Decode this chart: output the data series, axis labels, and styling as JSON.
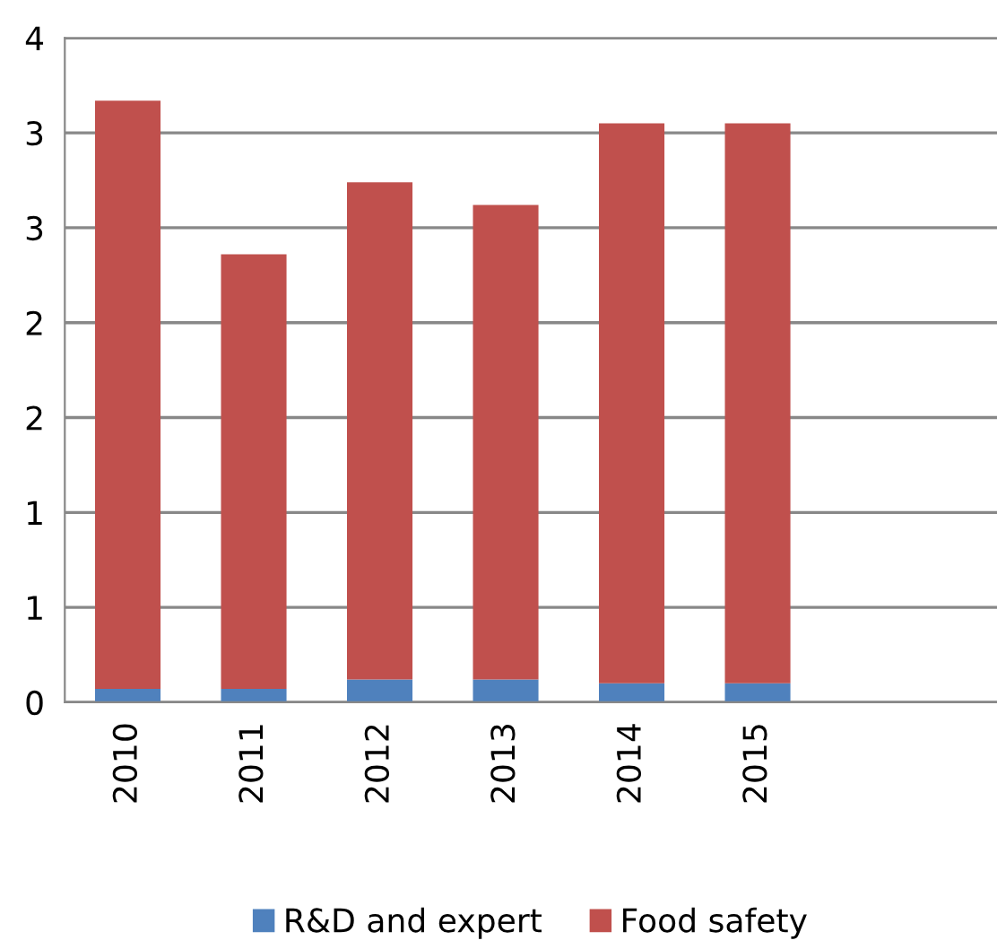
{
  "chart_data": {
    "type": "bar",
    "stacked": true,
    "categories": [
      "2010",
      "2011",
      "2012",
      "2013",
      "2014",
      "2015"
    ],
    "series": [
      {
        "name": "R&D and expert",
        "color": "#4f81bd",
        "values": [
          0.07,
          0.07,
          0.12,
          0.12,
          0.1,
          0.1
        ]
      },
      {
        "name": "Food safety",
        "color": "#c0504d",
        "values": [
          3.1,
          2.29,
          2.62,
          2.5,
          2.95,
          2.95
        ]
      }
    ],
    "ylim": [
      0,
      3.5
    ],
    "yticks": [
      0,
      {
        "value": 0.5,
        "label": "1"
      },
      1,
      {
        "value": 1.5,
        "label": "2"
      },
      2,
      {
        "value": 2.5,
        "label": "3"
      },
      3,
      {
        "value": 3.5,
        "label": "4"
      }
    ],
    "grid": "y",
    "legend": "bottom"
  }
}
